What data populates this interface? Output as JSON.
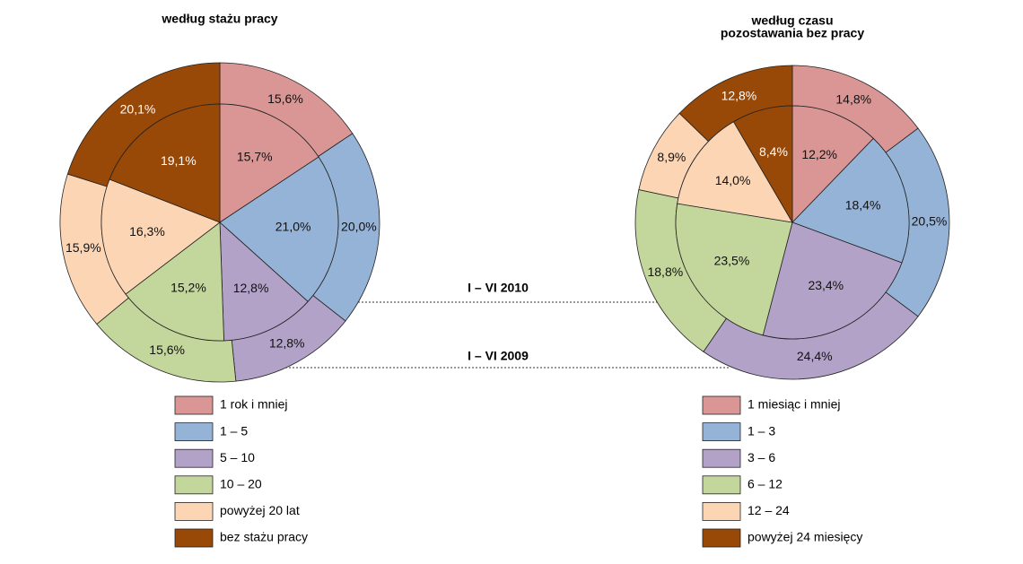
{
  "ring_labels": [
    "I – VI 2010",
    "I – VI 2009"
  ],
  "chart_data": [
    {
      "type": "nested_pie",
      "title": [
        "według stażu pracy"
      ],
      "categories": [
        "1 rok i mniej",
        "1 – 5",
        "5 – 10",
        "10 – 20",
        "powyżej 20 lat",
        "bez stażu pracy"
      ],
      "colors": [
        "#d99694",
        "#95b3d7",
        "#b3a2c7",
        "#c3d69b",
        "#fcd5b5",
        "#984807"
      ],
      "series": [
        {
          "values": [
            15.7,
            21.0,
            12.8,
            15.2,
            16.3,
            19.1
          ],
          "value_labels": [
            "15,7%",
            "21,0%",
            "12,8%",
            "15,2%",
            "16,3%",
            "19,1%"
          ]
        },
        {
          "values": [
            15.6,
            20.0,
            12.8,
            15.6,
            15.9,
            20.1
          ],
          "value_labels": [
            "15,6%",
            "20,0%",
            "12,8%",
            "15,6%",
            "15,9%",
            "20,1%"
          ]
        }
      ]
    },
    {
      "type": "nested_pie",
      "title": [
        "według czasu",
        "pozostawania bez pracy"
      ],
      "categories": [
        "1 miesiąc i mniej",
        "1 – 3",
        "3 – 6",
        "6 – 12",
        "12 – 24",
        "powyżej 24 miesięcy"
      ],
      "colors": [
        "#d99694",
        "#95b3d7",
        "#b3a2c7",
        "#c3d69b",
        "#fcd5b5",
        "#984807"
      ],
      "series": [
        {
          "values": [
            12.2,
            18.4,
            23.4,
            23.5,
            14.0,
            8.4
          ],
          "value_labels": [
            "12,2%",
            "18,4%",
            "23,4%",
            "23,5%",
            "14,0%",
            "8,4%"
          ]
        },
        {
          "values": [
            14.8,
            20.5,
            24.4,
            18.8,
            8.9,
            12.8
          ],
          "value_labels": [
            "14,8%",
            "20,5%",
            "24,4%",
            "18,8%",
            "8,9%",
            "12,8%"
          ]
        }
      ]
    }
  ]
}
